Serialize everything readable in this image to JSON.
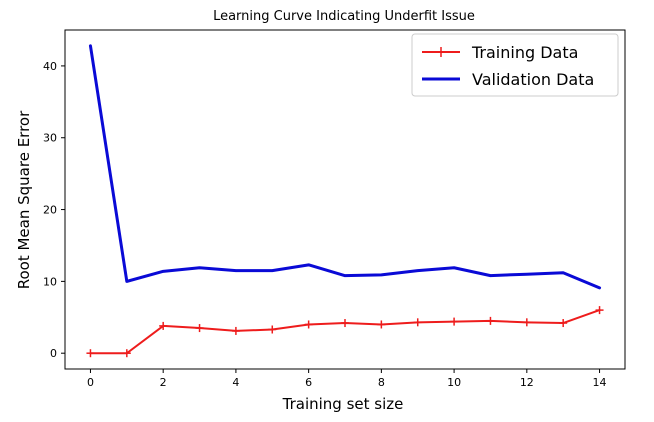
{
  "chart_data": {
    "type": "line",
    "title": "Learning Curve Indicating Underfit Issue",
    "xlabel": "Training set size",
    "ylabel": "Root Mean Square Error",
    "xlim": [
      -0.7,
      14.7
    ],
    "ylim": [
      -2.2,
      45.0
    ],
    "xticks": [
      "0",
      "2",
      "4",
      "6",
      "8",
      "10",
      "12",
      "14"
    ],
    "yticks": [
      "0",
      "10",
      "20",
      "30",
      "40"
    ],
    "grid": false,
    "legend_position": "top-right",
    "x": [
      0,
      1,
      2,
      3,
      4,
      5,
      6,
      7,
      8,
      9,
      10,
      11,
      12,
      13,
      14
    ],
    "series": [
      {
        "name": "Training Data",
        "color": "#ee1c1c",
        "marker": "plus",
        "values": [
          0.0,
          0.0,
          3.8,
          3.5,
          3.1,
          3.3,
          4.0,
          4.2,
          4.0,
          4.3,
          4.4,
          4.5,
          4.3,
          4.2,
          6.0
        ]
      },
      {
        "name": "Validation Data",
        "color": "#0a0ad6",
        "marker": "none",
        "values": [
          42.8,
          10.0,
          11.4,
          11.9,
          11.5,
          11.5,
          12.3,
          10.8,
          10.9,
          11.5,
          11.9,
          10.8,
          11.0,
          11.2,
          9.1
        ]
      }
    ]
  }
}
